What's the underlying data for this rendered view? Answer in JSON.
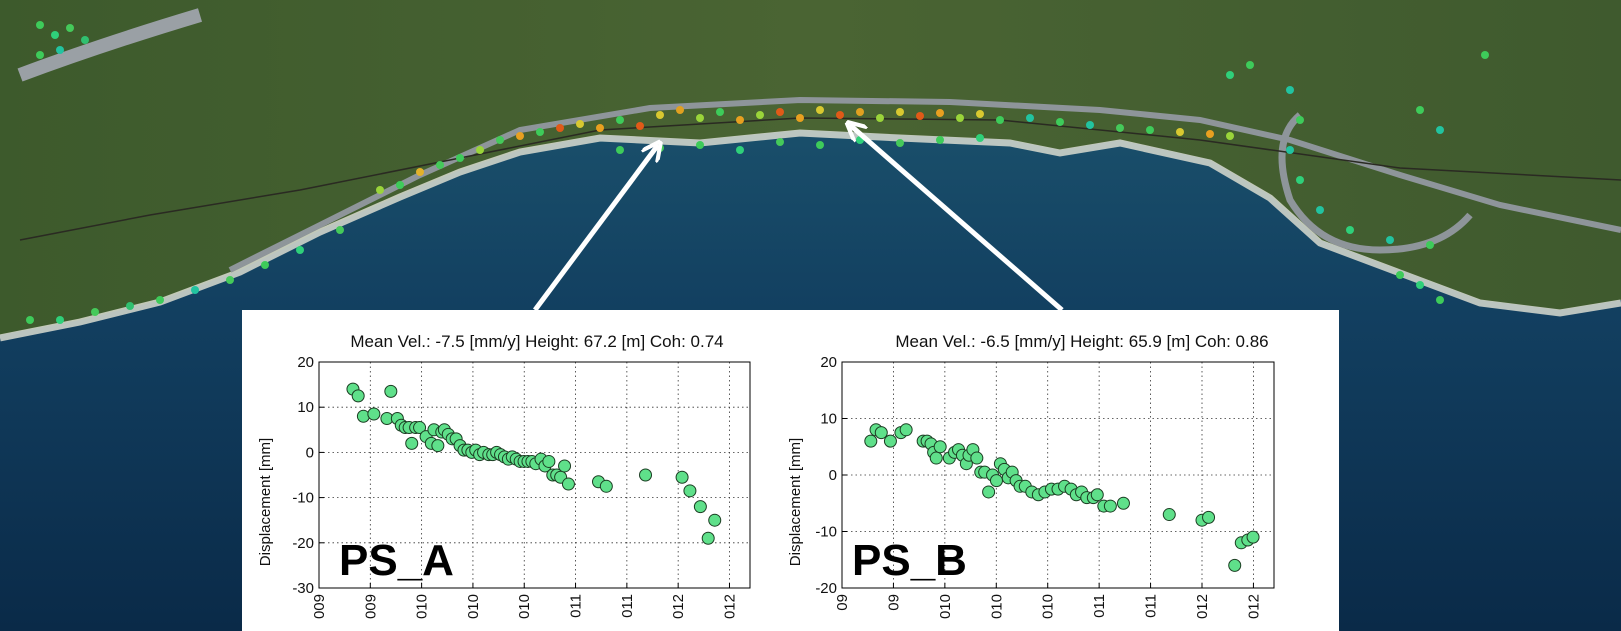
{
  "colors": {
    "marker_fill": "#5fe08a",
    "marker_stroke": "#1b3d22",
    "arrow": "#ffffff"
  },
  "chart_data": [
    {
      "type": "scatter",
      "title": "Mean Vel.: -7.5 [mm/y]  Height: 67.2 [m]   Coh: 0.74",
      "label": "PS_A",
      "ylabel": "Displacement [mm]",
      "xlabel": "",
      "ylim": [
        -30,
        20
      ],
      "yticks": [
        "20",
        "10",
        "0",
        "-10",
        "-20",
        "-30"
      ],
      "xlim": [
        2009.0,
        2012.3
      ],
      "xtick_labels": [
        "009",
        "009",
        "010",
        "010",
        "010",
        "011",
        "011",
        "012",
        "012"
      ],
      "grid": true,
      "series": [
        {
          "x": [
            2009.26,
            2009.3,
            2009.34,
            2009.42,
            2009.52,
            2009.55,
            2009.6,
            2009.63,
            2009.66,
            2009.69,
            2009.71,
            2009.74,
            2009.77,
            2009.82,
            2009.86,
            2009.88,
            2009.91,
            2009.94,
            2009.96,
            2009.99,
            2010.02,
            2010.05,
            2010.08,
            2010.11,
            2010.14,
            2010.17,
            2010.2,
            2010.23,
            2010.26,
            2010.3,
            2010.33,
            2010.36,
            2010.39,
            2010.42,
            2010.45,
            2010.48,
            2010.51,
            2010.54,
            2010.57,
            2010.6,
            2010.63,
            2010.66,
            2010.7,
            2010.73,
            2010.76,
            2010.79,
            2010.82,
            2010.85,
            2010.88,
            2010.91,
            2011.14,
            2011.2,
            2011.5,
            2011.78,
            2011.84,
            2011.92,
            2011.98,
            2012.03
          ],
          "y": [
            14,
            12.5,
            8,
            8.5,
            7.5,
            13.5,
            7.5,
            6,
            5.5,
            5.5,
            2,
            5.5,
            5.5,
            3.5,
            2,
            5,
            1.5,
            4.5,
            5,
            4,
            3,
            3,
            1.5,
            0.5,
            0.5,
            0,
            0.5,
            -0.5,
            0,
            -0.5,
            -0.5,
            0,
            -0.5,
            -1,
            -1.5,
            -1,
            -1.5,
            -2,
            -2,
            -2,
            -2,
            -2.5,
            -1.5,
            -3,
            -2,
            -5,
            -5,
            -5.5,
            -3,
            -7,
            -6.5,
            -7.5,
            -5,
            -5.5,
            -8.5,
            -12,
            -19,
            -15
          ]
        }
      ]
    },
    {
      "type": "scatter",
      "title": "Mean Vel.: -6.5 [mm/y]  Height: 65.9 [m]   Coh: 0.86",
      "label": "PS_B",
      "ylabel": "Displacement [mm]",
      "xlabel": "",
      "ylim": [
        -20,
        20
      ],
      "yticks": [
        "20",
        "10",
        "0",
        "-10",
        "-20"
      ],
      "xlim": [
        2009.0,
        2012.3
      ],
      "xtick_labels": [
        "09",
        "09",
        "010",
        "010",
        "010",
        "011",
        "011",
        "012",
        "012"
      ],
      "grid": true,
      "series": [
        {
          "x": [
            2009.22,
            2009.26,
            2009.3,
            2009.37,
            2009.45,
            2009.49,
            2009.62,
            2009.65,
            2009.68,
            2009.7,
            2009.72,
            2009.75,
            2009.82,
            2009.86,
            2009.89,
            2009.92,
            2009.95,
            2009.97,
            2010.0,
            2010.03,
            2010.06,
            2010.09,
            2010.12,
            2010.15,
            2010.18,
            2010.21,
            2010.24,
            2010.27,
            2010.3,
            2010.33,
            2010.36,
            2010.4,
            2010.45,
            2010.5,
            2010.55,
            2010.6,
            2010.65,
            2010.7,
            2010.75,
            2010.79,
            2010.83,
            2010.87,
            2010.92,
            2010.95,
            2011.0,
            2011.05,
            2011.15,
            2011.5,
            2011.75,
            2011.8,
            2012.0,
            2012.05,
            2012.1,
            2012.14
          ],
          "y": [
            6,
            8,
            7.5,
            6,
            7.5,
            8,
            6,
            6,
            5.5,
            4,
            3,
            5,
            3,
            4,
            4.5,
            3.5,
            2,
            3.5,
            4.5,
            3,
            0.5,
            0.5,
            -3,
            0,
            -1,
            2,
            1,
            -0.5,
            0.5,
            -1,
            -2,
            -2,
            -3,
            -3.5,
            -3,
            -2.5,
            -2.5,
            -2,
            -2.5,
            -3.5,
            -3,
            -4,
            -4,
            -3.5,
            -5.5,
            -5.5,
            -5,
            -7,
            -8,
            -7.5,
            -16,
            -12,
            -11.5,
            -11
          ]
        }
      ]
    }
  ]
}
